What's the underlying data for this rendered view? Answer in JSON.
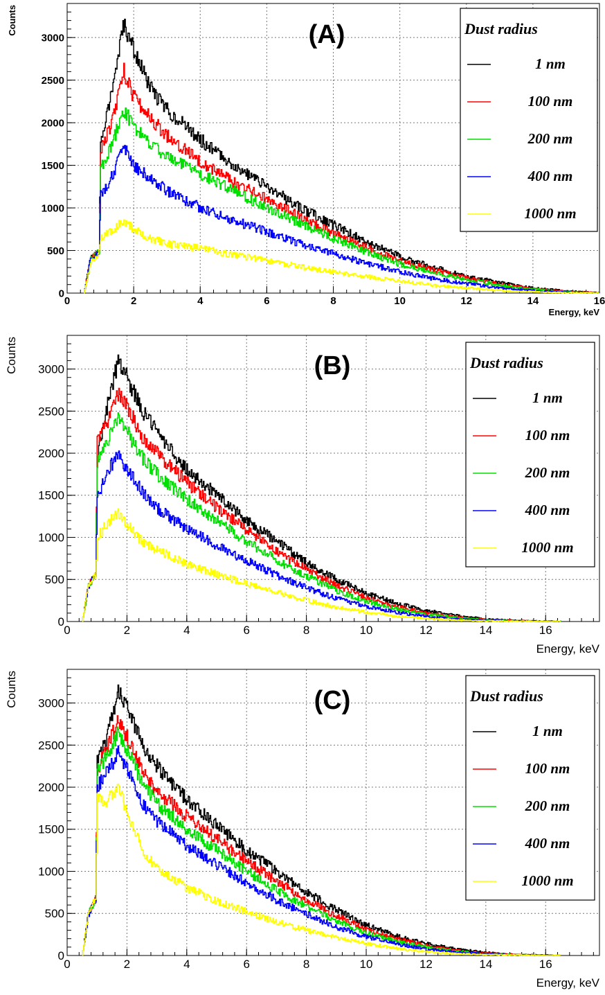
{
  "colors": {
    "1 nm": "#000000",
    "100 nm": "#ff0000",
    "200 nm": "#00e000",
    "400 nm": "#0000ff",
    "1000 nm": "#ffff00"
  },
  "chart_data": [
    {
      "type": "line",
      "panel_label": "(A)",
      "xlabel": "Energy, keV",
      "ylabel": "Counts",
      "xlim": [
        0,
        16
      ],
      "ylim": [
        0,
        3400
      ],
      "xticks": [
        0,
        2,
        4,
        6,
        8,
        10,
        12,
        14,
        16
      ],
      "yticks": [
        0,
        500,
        1000,
        1500,
        2000,
        2500,
        3000
      ],
      "grid": true,
      "legend_title": "Dust radius",
      "legend_position": "top-right",
      "x": [
        0.5,
        0.7,
        0.95,
        1.0,
        1.3,
        1.7,
        2.0,
        2.5,
        3,
        4,
        5,
        6,
        7,
        8,
        9,
        10,
        11,
        12,
        13,
        14,
        15,
        16
      ],
      "series": [
        {
          "name": "1 nm",
          "values": [
            0,
            400,
            480,
            1800,
            2300,
            3150,
            2850,
            2400,
            2150,
            1800,
            1500,
            1250,
            1000,
            800,
            600,
            430,
            300,
            200,
            120,
            60,
            25,
            5
          ]
        },
        {
          "name": "100 nm",
          "values": [
            0,
            400,
            480,
            1700,
            1950,
            2600,
            2300,
            2050,
            1850,
            1550,
            1300,
            1100,
            900,
            700,
            530,
            380,
            270,
            180,
            100,
            50,
            20,
            5
          ]
        },
        {
          "name": "200 nm",
          "values": [
            0,
            400,
            480,
            1450,
            1700,
            2150,
            1950,
            1750,
            1600,
            1400,
            1200,
            1000,
            820,
            640,
            480,
            340,
            240,
            160,
            90,
            45,
            15,
            5
          ]
        },
        {
          "name": "400 nm",
          "values": [
            0,
            400,
            480,
            1150,
            1350,
            1700,
            1500,
            1350,
            1200,
            1000,
            850,
            720,
            580,
            460,
            350,
            250,
            170,
            110,
            60,
            30,
            10,
            3
          ]
        },
        {
          "name": "1000 nm",
          "values": [
            0,
            350,
            480,
            650,
            720,
            850,
            750,
            640,
            580,
            520,
            450,
            380,
            310,
            250,
            190,
            140,
            90,
            60,
            30,
            15,
            5,
            2
          ]
        }
      ]
    },
    {
      "type": "line",
      "panel_label": "(B)",
      "xlabel": "Energy, keV",
      "ylabel": "Counts",
      "xlim": [
        0,
        17.8
      ],
      "ylim": [
        0,
        3400
      ],
      "xticks": [
        0,
        2,
        4,
        6,
        8,
        10,
        12,
        14,
        16
      ],
      "yticks": [
        0,
        500,
        1000,
        1500,
        2000,
        2500,
        3000
      ],
      "grid": true,
      "legend_title": "Dust radius",
      "legend_position": "top-right",
      "x": [
        0.5,
        0.7,
        0.95,
        1.0,
        1.3,
        1.7,
        2.0,
        2.5,
        3,
        4,
        5,
        6,
        7,
        8,
        9,
        10,
        11,
        12,
        13,
        14,
        15,
        16,
        16.5
      ],
      "series": [
        {
          "name": "1 nm",
          "values": [
            0,
            420,
            560,
            2000,
            2500,
            3100,
            2900,
            2500,
            2250,
            1800,
            1500,
            1200,
            950,
            700,
            500,
            330,
            220,
            130,
            70,
            30,
            12,
            4,
            0
          ]
        },
        {
          "name": "100 nm",
          "values": [
            0,
            420,
            560,
            2150,
            2350,
            2700,
            2550,
            2200,
            2000,
            1650,
            1350,
            1080,
            830,
            620,
            430,
            280,
            180,
            100,
            55,
            25,
            10,
            3,
            0
          ]
        },
        {
          "name": "200 nm",
          "values": [
            0,
            420,
            560,
            1900,
            2100,
            2450,
            2250,
            1950,
            1750,
            1450,
            1200,
            950,
            730,
            540,
            370,
            240,
            150,
            85,
            45,
            20,
            8,
            2,
            0
          ]
        },
        {
          "name": "400 nm",
          "values": [
            0,
            420,
            560,
            1450,
            1750,
            2000,
            1800,
            1550,
            1350,
            1100,
            900,
            720,
            550,
            400,
            270,
            180,
            110,
            60,
            30,
            15,
            5,
            1,
            0
          ]
        },
        {
          "name": "1000 nm",
          "values": [
            0,
            420,
            560,
            1000,
            1150,
            1300,
            1150,
            950,
            850,
            680,
            560,
            450,
            350,
            250,
            170,
            110,
            65,
            35,
            18,
            8,
            3,
            1,
            0
          ]
        }
      ]
    },
    {
      "type": "line",
      "panel_label": "(C)",
      "xlabel": "Energy, keV",
      "ylabel": "Counts",
      "xlim": [
        0,
        17.8
      ],
      "ylim": [
        0,
        3400
      ],
      "xticks": [
        0,
        2,
        4,
        6,
        8,
        10,
        12,
        14,
        16
      ],
      "yticks": [
        0,
        500,
        1000,
        1500,
        2000,
        2500,
        3000
      ],
      "grid": true,
      "legend_title": "Dust radius",
      "legend_position": "top-right",
      "x": [
        0.5,
        0.7,
        0.95,
        1.0,
        1.3,
        1.7,
        2.0,
        2.5,
        3,
        4,
        5,
        6,
        7,
        8,
        9,
        10,
        11,
        12,
        13,
        14,
        15,
        16,
        16.5
      ],
      "series": [
        {
          "name": "1 nm",
          "values": [
            0,
            480,
            680,
            2300,
            2550,
            3150,
            2950,
            2500,
            2250,
            1850,
            1550,
            1250,
            1000,
            750,
            540,
            360,
            230,
            140,
            75,
            35,
            12,
            4,
            0
          ]
        },
        {
          "name": "100 nm",
          "values": [
            0,
            480,
            680,
            2200,
            2450,
            2800,
            2600,
            2200,
            1950,
            1650,
            1380,
            1120,
            880,
            660,
            470,
            310,
            200,
            115,
            60,
            28,
            10,
            3,
            0
          ]
        },
        {
          "name": "200 nm",
          "values": [
            0,
            480,
            680,
            2200,
            2350,
            2650,
            2450,
            2050,
            1800,
            1500,
            1250,
            1000,
            780,
            580,
            410,
            270,
            170,
            95,
            50,
            22,
            8,
            2,
            0
          ]
        },
        {
          "name": "400 nm",
          "values": [
            0,
            480,
            680,
            2000,
            2150,
            2400,
            2200,
            1800,
            1600,
            1300,
            1080,
            860,
            660,
            490,
            340,
            220,
            140,
            75,
            40,
            18,
            6,
            2,
            0
          ]
        },
        {
          "name": "1000 nm",
          "values": [
            0,
            480,
            680,
            1850,
            1850,
            2000,
            1700,
            1250,
            1050,
            800,
            650,
            520,
            400,
            300,
            210,
            140,
            85,
            45,
            22,
            10,
            4,
            1,
            0
          ]
        }
      ]
    }
  ]
}
